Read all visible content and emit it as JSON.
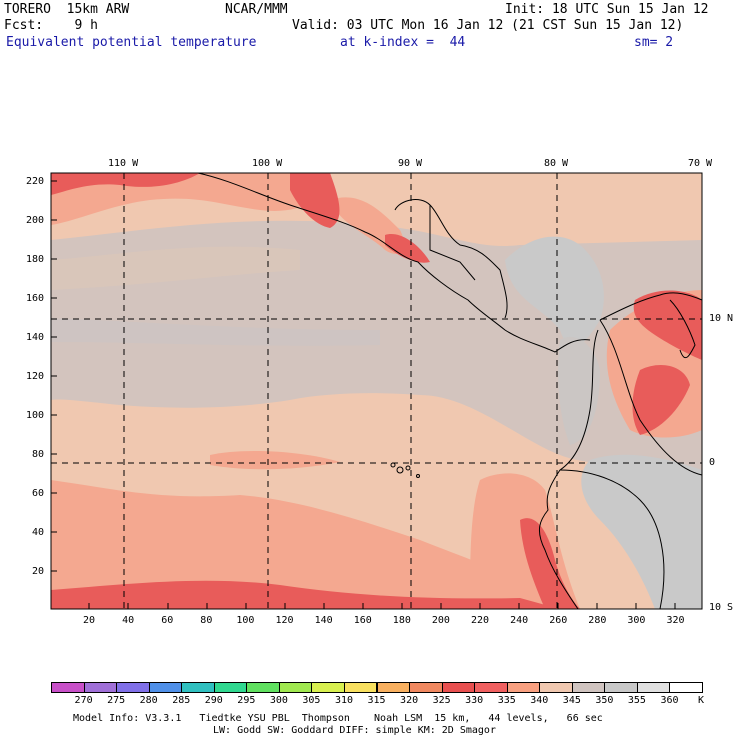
{
  "header": {
    "model": "TORERO  15km ARW",
    "org": "NCAR/MMM",
    "init": "Init: 18 UTC Sun 15 Jan 12",
    "fcst": "Fcst:    9 h",
    "valid": "Valid: 03 UTC Mon 16 Jan 12 (21 CST Sun 15 Jan 12)",
    "field": "Equivalent potential temperature",
    "level": "at k-index =  44",
    "smooth": "sm= 2"
  },
  "top_lon_labels": [
    "110 W",
    "100 W",
    "90 W",
    "80 W",
    "70 W"
  ],
  "right_lat_labels": [
    "10 N",
    "0",
    "10 S"
  ],
  "left_y_ticks": [
    "220",
    "200",
    "180",
    "160",
    "140",
    "120",
    "100",
    "80",
    "60",
    "40",
    "20"
  ],
  "bottom_x_ticks": [
    "20",
    "40",
    "60",
    "80",
    "100",
    "120",
    "140",
    "160",
    "180",
    "200",
    "220",
    "240",
    "260",
    "280",
    "300",
    "320"
  ],
  "colorbar": {
    "unit": "K",
    "values": [
      "270",
      "275",
      "280",
      "285",
      "290",
      "295",
      "300",
      "305",
      "310",
      "315",
      "320",
      "325",
      "330",
      "335",
      "340",
      "345",
      "350",
      "355",
      "360"
    ],
    "colors": [
      "#c850c8",
      "#a070d8",
      "#8070e8",
      "#5090e8",
      "#30c0c0",
      "#30d890",
      "#60e060",
      "#a0e850",
      "#d8f050",
      "#f8e060",
      "#f8b060",
      "#f08860",
      "#e85050",
      "#f06060",
      "#f8a080",
      "#f0c8b0",
      "#d0c4c0",
      "#c8c8c8",
      "#e0e0e0",
      "#ffffff"
    ]
  },
  "footer": {
    "line1": "Model Info: V3.3.1   Tiedtke YSU PBL  Thompson    Noah LSM  15 km,   44 levels,   66 sec",
    "line2": "LW: Godd SW: Goddard DIFF: simple KM: 2D Smagor"
  }
}
